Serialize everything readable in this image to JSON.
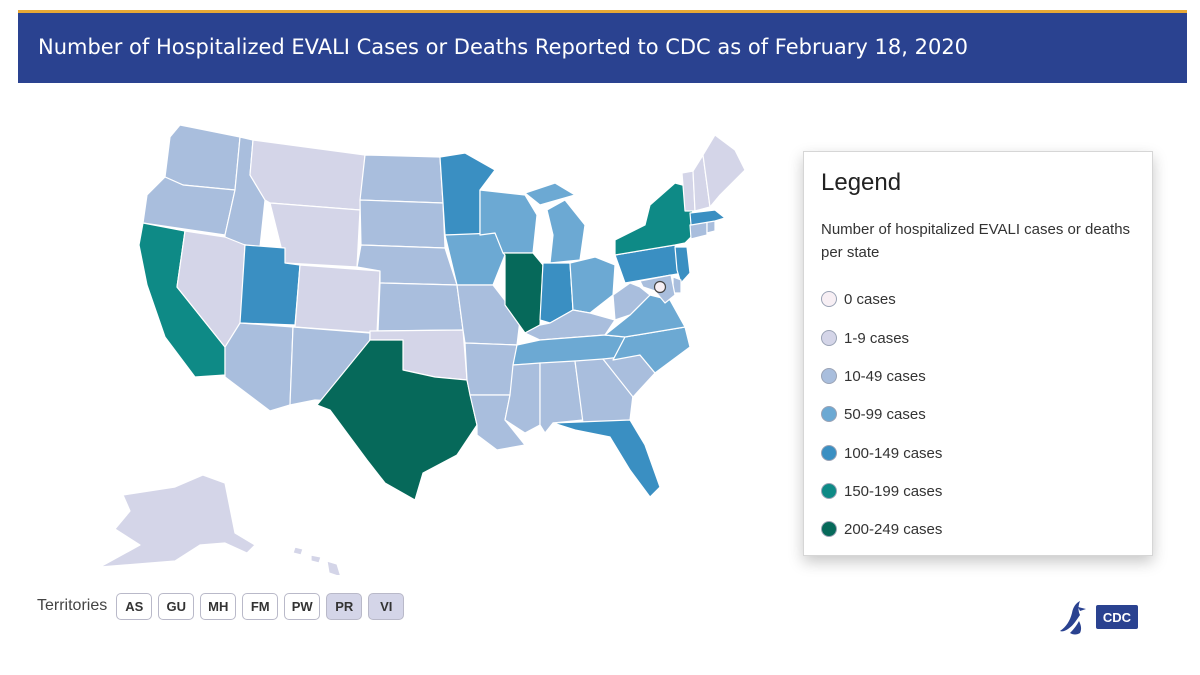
{
  "header": {
    "title": "Number of Hospitalized EVALI Cases or Deaths Reported to CDC as of February 18, 2020"
  },
  "colors": {
    "header_bg": "#2a4290",
    "header_accent": "#e8a935",
    "c0": "#f7eff4",
    "c1": "#d4d5e8",
    "c10": "#a9bedd",
    "c50": "#6ca9d3",
    "c100": "#3a8fc2",
    "c150": "#0e8a86",
    "c200": "#06695a"
  },
  "map": {
    "bins": [
      "0 cases",
      "1-9 cases",
      "10-49 cases",
      "50-99 cases",
      "100-149 cases",
      "150-199 cases",
      "200-249 cases"
    ],
    "states": {
      "WA": "10-49 cases",
      "OR": "10-49 cases",
      "CA": "150-199 cases",
      "ID": "10-49 cases",
      "NV": "1-9 cases",
      "MT": "1-9 cases",
      "WY": "1-9 cases",
      "UT": "100-149 cases",
      "AZ": "10-49 cases",
      "CO": "1-9 cases",
      "NM": "10-49 cases",
      "ND": "10-49 cases",
      "SD": "10-49 cases",
      "NE": "10-49 cases",
      "KS": "10-49 cases",
      "OK": "1-9 cases",
      "TX": "200-249 cases",
      "MN": "100-149 cases",
      "IA": "50-99 cases",
      "MO": "10-49 cases",
      "AR": "10-49 cases",
      "LA": "10-49 cases",
      "WI": "50-99 cases",
      "IL": "200-249 cases",
      "MI": "50-99 cases",
      "IN": "100-149 cases",
      "OH": "50-99 cases",
      "KY": "10-49 cases",
      "TN": "50-99 cases",
      "MS": "10-49 cases",
      "AL": "10-49 cases",
      "GA": "10-49 cases",
      "FL": "100-149 cases",
      "SC": "10-49 cases",
      "NC": "50-99 cases",
      "VA": "50-99 cases",
      "WV": "10-49 cases",
      "PA": "100-149 cases",
      "NY": "150-199 cases",
      "NJ": "100-149 cases",
      "DE": "10-49 cases",
      "MD": "10-49 cases",
      "DC": "0 cases",
      "CT": "10-49 cases",
      "RI": "10-49 cases",
      "MA": "100-149 cases",
      "VT": "1-9 cases",
      "NH": "1-9 cases",
      "ME": "1-9 cases",
      "AK": "1-9 cases",
      "HI": "1-9 cases"
    }
  },
  "legend": {
    "title": "Legend",
    "description": "Number of hospitalized EVALI cases or deaths per state",
    "items": [
      {
        "label": "0 cases",
        "color": "#f7eff4"
      },
      {
        "label": "1-9 cases",
        "color": "#d4d5e8"
      },
      {
        "label": "10-49 cases",
        "color": "#a9bedd"
      },
      {
        "label": "50-99 cases",
        "color": "#6ca9d3"
      },
      {
        "label": "100-149 cases",
        "color": "#3a8fc2"
      },
      {
        "label": "150-199 cases",
        "color": "#0e8a86"
      },
      {
        "label": "200-249 cases",
        "color": "#06695a"
      }
    ]
  },
  "territories": {
    "label": "Territories",
    "items": [
      {
        "code": "AS",
        "bin": "0 cases"
      },
      {
        "code": "GU",
        "bin": "0 cases"
      },
      {
        "code": "MH",
        "bin": "0 cases"
      },
      {
        "code": "FM",
        "bin": "0 cases"
      },
      {
        "code": "PW",
        "bin": "0 cases"
      },
      {
        "code": "PR",
        "bin": "1-9 cases"
      },
      {
        "code": "VI",
        "bin": "1-9 cases"
      }
    ]
  },
  "logo": {
    "text": "CDC",
    "icon": "hhs-eagle-icon"
  }
}
